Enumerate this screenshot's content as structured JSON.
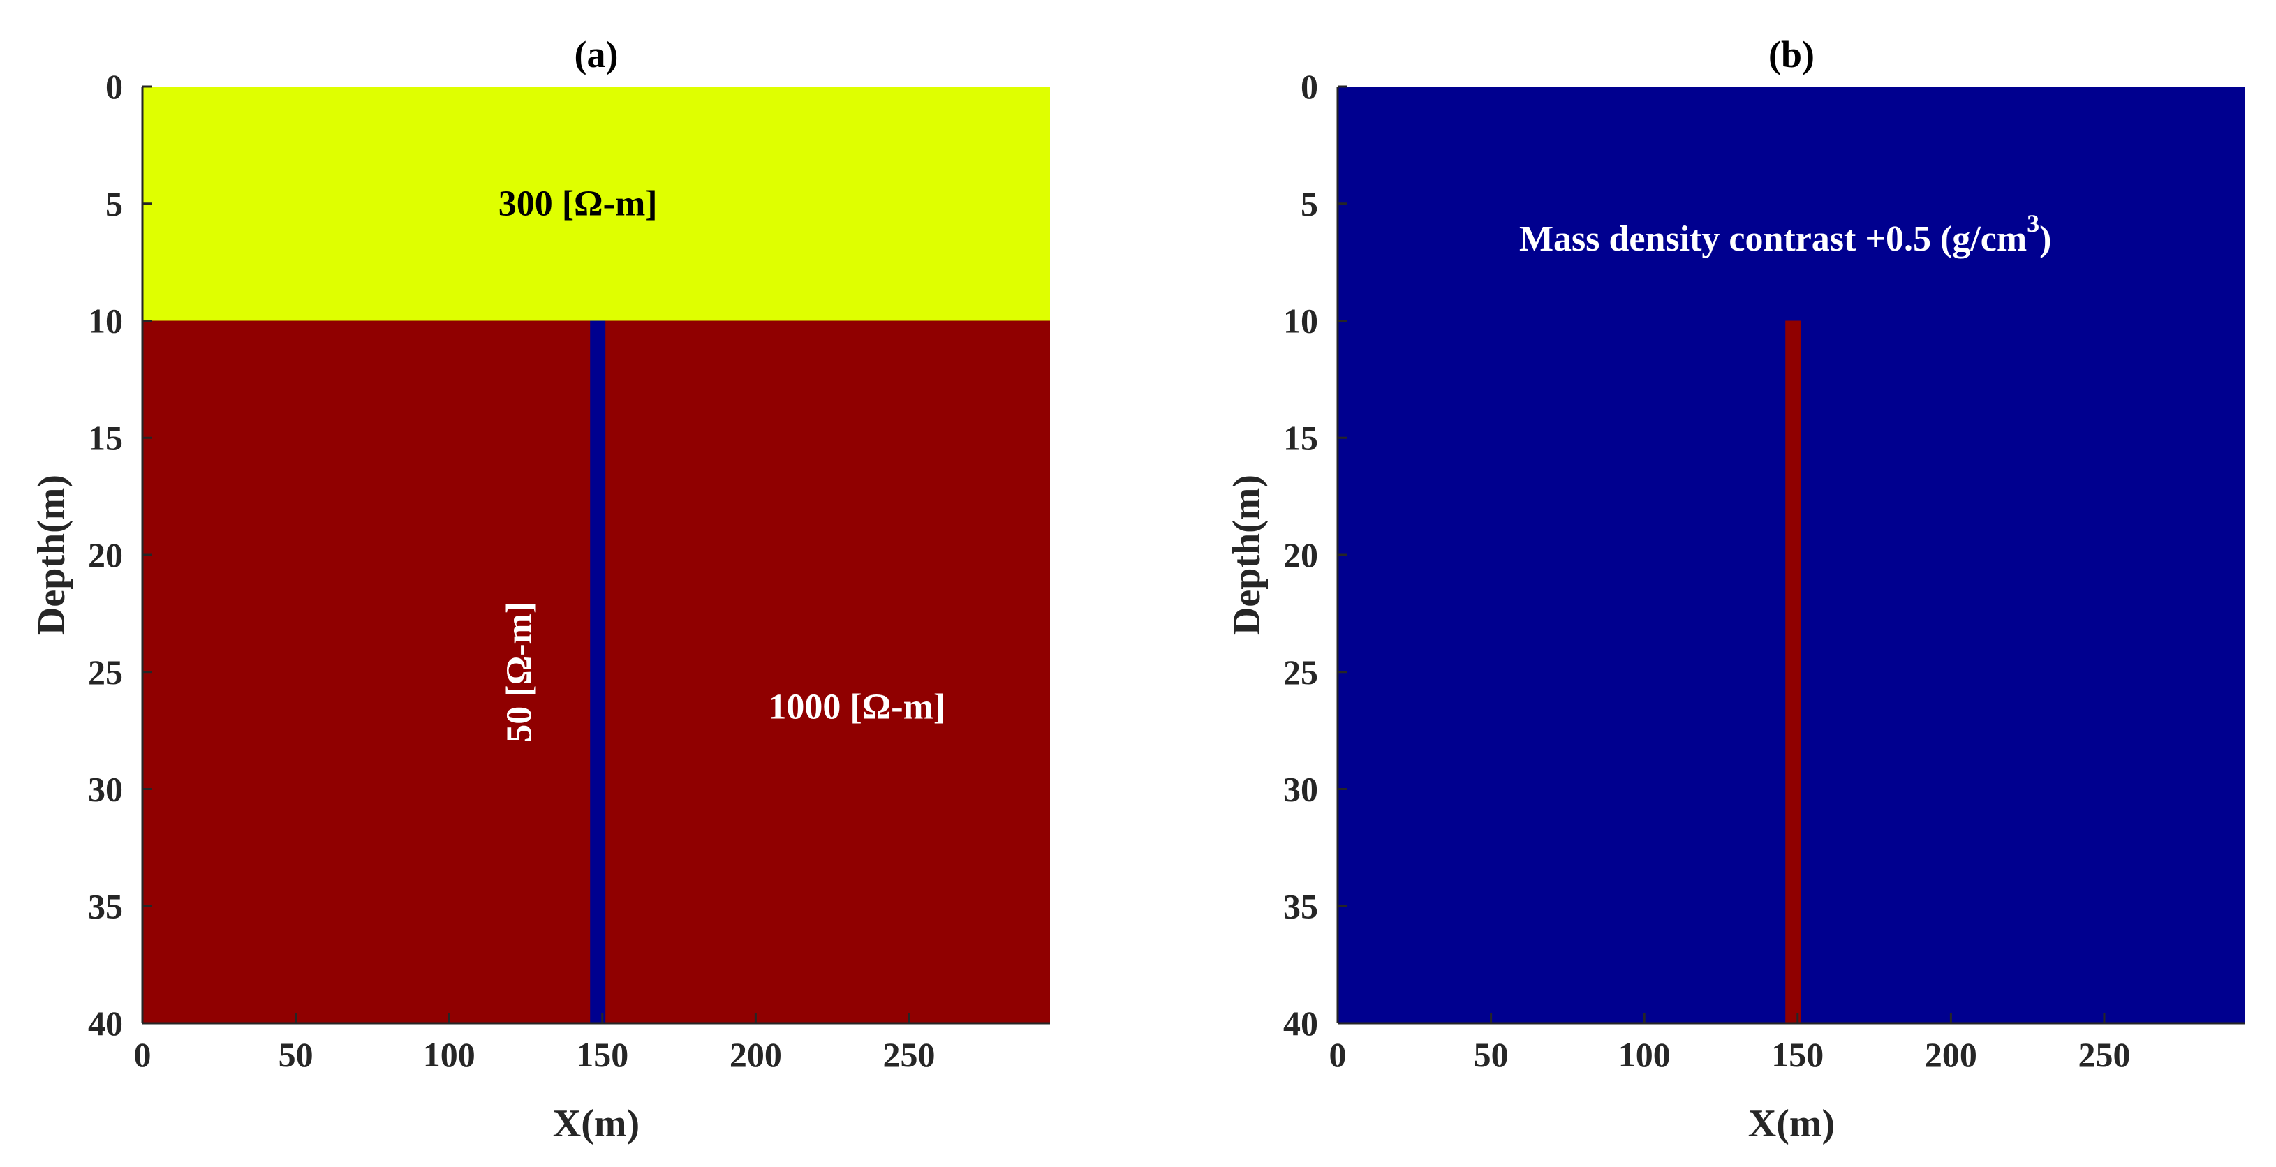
{
  "chart_data": [
    {
      "type": "heatmap",
      "title": "(a)",
      "xlabel": "X(m)",
      "ylabel": "Depth(m)",
      "xlim": [
        0,
        296
      ],
      "ylim": [
        0,
        40
      ],
      "y_reversed": true,
      "xticks": [
        0,
        50,
        100,
        150,
        200,
        250
      ],
      "yticks": [
        0,
        5,
        10,
        15,
        20,
        25,
        30,
        35,
        40
      ],
      "background_color": "#900000",
      "regions": [
        {
          "name": "upper-layer",
          "x": [
            0,
            296
          ],
          "y": [
            0,
            10
          ],
          "color": "#dfff00",
          "value": "300 [Ω-m]"
        },
        {
          "name": "lower-layer",
          "x": [
            0,
            296
          ],
          "y": [
            10,
            40
          ],
          "color": "#900000",
          "value": "1000 [Ω-m]"
        },
        {
          "name": "dyke",
          "x": [
            146,
            151
          ],
          "y": [
            10,
            40
          ],
          "color": "#00008f",
          "value": "50 [Ω-m]"
        }
      ],
      "annotations": [
        {
          "text": "300 [Ω-m]",
          "x": 142,
          "y": 5,
          "color": "#000000",
          "rotate": 0
        },
        {
          "text": "1000 [Ω-m]",
          "x": 233,
          "y": 26.5,
          "color": "#ffffff",
          "rotate": 0
        },
        {
          "text": "50 [Ω-m]",
          "x": 123,
          "y": 25,
          "color": "#ffffff",
          "rotate": -90
        }
      ]
    },
    {
      "type": "heatmap",
      "title": "(b)",
      "xlabel": "X(m)",
      "ylabel": "Depth(m)",
      "xlim": [
        0,
        296
      ],
      "ylim": [
        0,
        40
      ],
      "y_reversed": true,
      "xticks": [
        0,
        50,
        100,
        150,
        200,
        250
      ],
      "yticks": [
        0,
        5,
        10,
        15,
        20,
        25,
        30,
        35,
        40
      ],
      "background_color": "#00008f",
      "regions": [
        {
          "name": "dyke",
          "x": [
            146,
            151
          ],
          "y": [
            10,
            40
          ],
          "color": "#900000",
          "value": "+0.5 (g/cm3)"
        }
      ],
      "annotations": [
        {
          "text": "Mass density contrast +0.5 (g/cm",
          "superscript": "3",
          "suffix": ")",
          "x": 146,
          "y": 6.5,
          "color": "#ffffff",
          "rotate": 0
        }
      ]
    }
  ]
}
